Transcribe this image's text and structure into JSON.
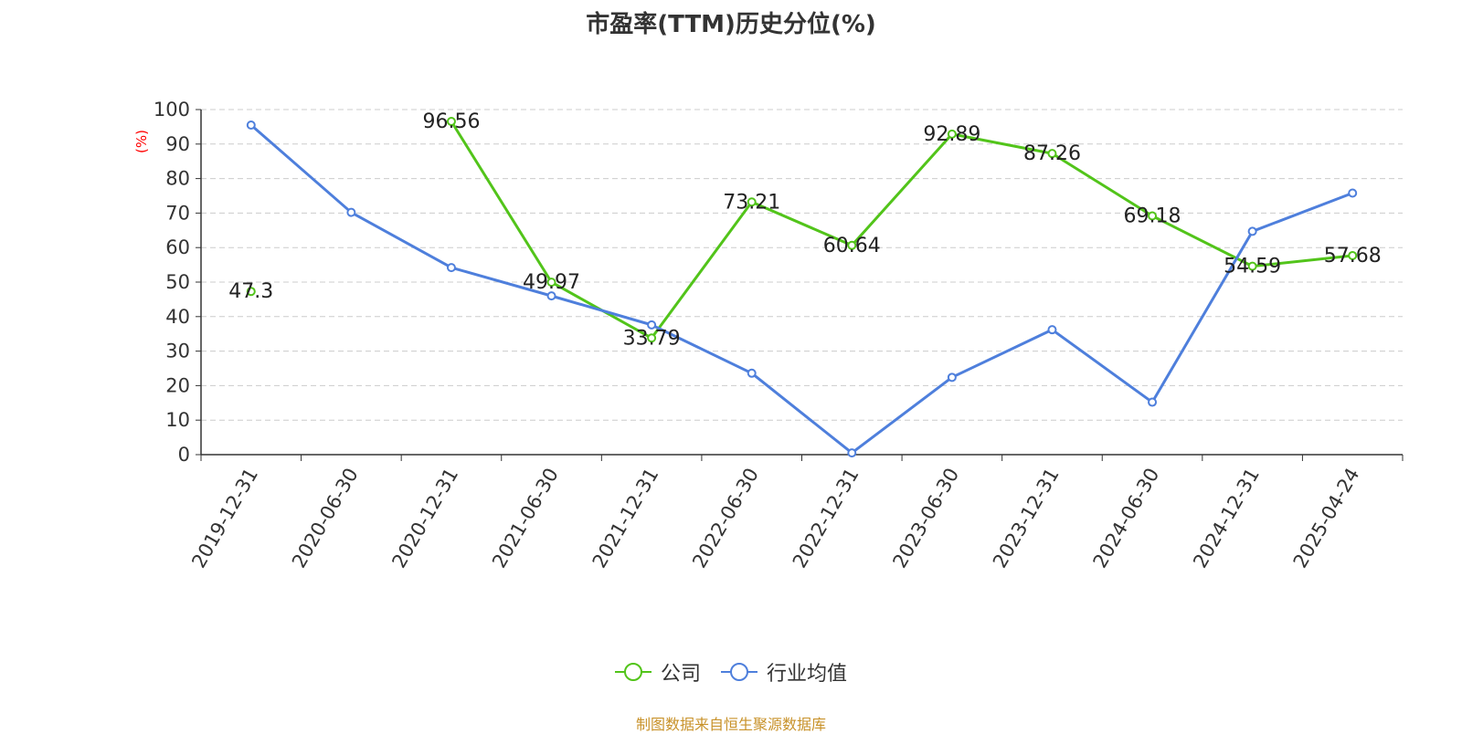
{
  "chart_data": {
    "type": "line",
    "title": "市盈率(TTM)历史分位(%)",
    "ylabel": "(%)",
    "ylim": [
      0,
      100
    ],
    "yticks": [
      0,
      10,
      20,
      30,
      40,
      50,
      60,
      70,
      80,
      90,
      100
    ],
    "grid": true,
    "legend_position": "bottom",
    "categories": [
      "2019-12-31",
      "2020-06-30",
      "2020-12-31",
      "2021-06-30",
      "2021-12-31",
      "2022-06-30",
      "2022-12-31",
      "2023-06-30",
      "2023-12-31",
      "2024-06-30",
      "2024-12-31",
      "2025-04-24"
    ],
    "series": [
      {
        "name": "公司",
        "color": "#52c41a",
        "values": [
          47.3,
          null,
          96.56,
          49.97,
          33.79,
          73.21,
          60.64,
          92.89,
          87.26,
          69.18,
          54.59,
          57.68
        ],
        "labels": [
          "47.3",
          "",
          "96.56",
          "49.97",
          "33.79",
          "73.21",
          "60.64",
          "92.89",
          "87.26",
          "69.18",
          "54.59",
          "57.68"
        ]
      },
      {
        "name": "行业均值",
        "color": "#4e7fdc",
        "values": [
          95.5,
          70.2,
          54.2,
          46.0,
          37.6,
          23.6,
          0.5,
          22.4,
          36.2,
          15.2,
          64.7,
          75.8
        ]
      }
    ]
  },
  "source": "制图数据来自恒生聚源数据库"
}
